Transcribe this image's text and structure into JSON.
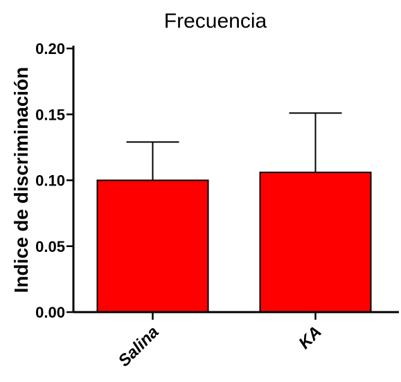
{
  "chart_data": {
    "type": "bar",
    "title": "Frecuencia",
    "xlabel": "",
    "ylabel": "Indice de discriminación",
    "categories": [
      "Salina",
      "KA"
    ],
    "values": [
      0.1,
      0.106
    ],
    "errors": [
      0.029,
      0.045
    ],
    "ylim": [
      0,
      0.2
    ],
    "yticks": [
      0.0,
      0.05,
      0.1,
      0.15,
      0.2
    ],
    "ytick_labels": [
      "0.00",
      "0.05",
      "0.10",
      "0.15",
      "0.20"
    ],
    "bar_color": "#ff0000",
    "grid": false,
    "legend": "none"
  }
}
